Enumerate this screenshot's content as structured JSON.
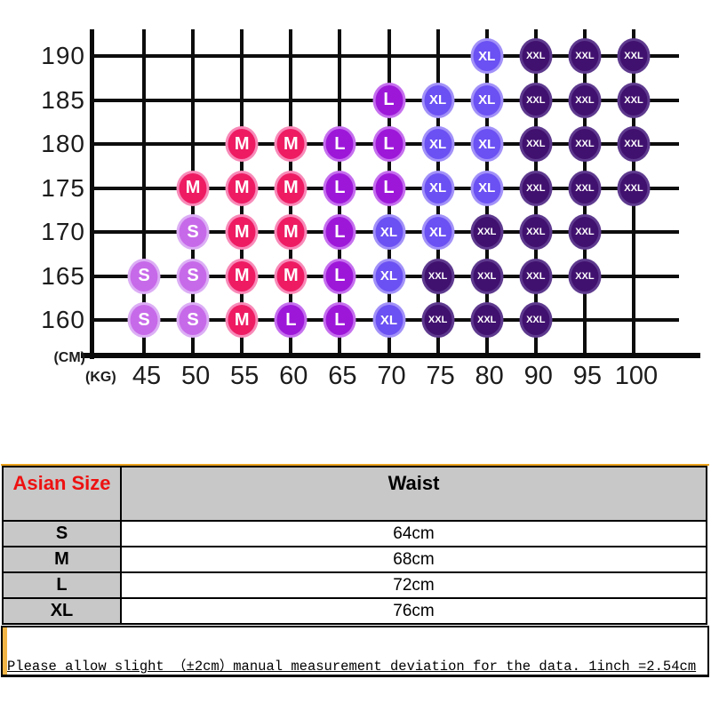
{
  "chart_data": {
    "type": "scatter",
    "title": "",
    "xlabel": "(KG)",
    "ylabel": "(CM)",
    "x_ticks": [
      45,
      50,
      55,
      60,
      65,
      70,
      75,
      80,
      90,
      95,
      100
    ],
    "y_ticks": [
      190,
      185,
      180,
      175,
      170,
      165,
      160
    ],
    "grid": true,
    "legend_sizes": [
      "S",
      "M",
      "L",
      "XL",
      "XXL"
    ],
    "rows": [
      {
        "cm": 190,
        "items": [
          {
            "kg": 80,
            "size": "XL"
          },
          {
            "kg": 90,
            "size": "XXL"
          },
          {
            "kg": 95,
            "size": "XXL"
          },
          {
            "kg": 100,
            "size": "XXL"
          }
        ]
      },
      {
        "cm": 185,
        "items": [
          {
            "kg": 70,
            "size": "L"
          },
          {
            "kg": 75,
            "size": "XL"
          },
          {
            "kg": 80,
            "size": "XL"
          },
          {
            "kg": 90,
            "size": "XXL"
          },
          {
            "kg": 95,
            "size": "XXL"
          },
          {
            "kg": 100,
            "size": "XXL"
          }
        ]
      },
      {
        "cm": 180,
        "items": [
          {
            "kg": 55,
            "size": "M"
          },
          {
            "kg": 60,
            "size": "M"
          },
          {
            "kg": 65,
            "size": "L"
          },
          {
            "kg": 70,
            "size": "L"
          },
          {
            "kg": 75,
            "size": "XL"
          },
          {
            "kg": 80,
            "size": "XL"
          },
          {
            "kg": 90,
            "size": "XXL"
          },
          {
            "kg": 95,
            "size": "XXL"
          },
          {
            "kg": 100,
            "size": "XXL"
          }
        ]
      },
      {
        "cm": 175,
        "items": [
          {
            "kg": 50,
            "size": "M"
          },
          {
            "kg": 55,
            "size": "M"
          },
          {
            "kg": 60,
            "size": "M"
          },
          {
            "kg": 65,
            "size": "L"
          },
          {
            "kg": 70,
            "size": "L"
          },
          {
            "kg": 75,
            "size": "XL"
          },
          {
            "kg": 80,
            "size": "XL"
          },
          {
            "kg": 90,
            "size": "XXL"
          },
          {
            "kg": 95,
            "size": "XXL"
          },
          {
            "kg": 100,
            "size": "XXL"
          }
        ]
      },
      {
        "cm": 170,
        "items": [
          {
            "kg": 50,
            "size": "S"
          },
          {
            "kg": 55,
            "size": "M"
          },
          {
            "kg": 60,
            "size": "M"
          },
          {
            "kg": 65,
            "size": "L"
          },
          {
            "kg": 70,
            "size": "XL"
          },
          {
            "kg": 75,
            "size": "XL"
          },
          {
            "kg": 80,
            "size": "XXL"
          },
          {
            "kg": 90,
            "size": "XXL"
          },
          {
            "kg": 95,
            "size": "XXL"
          }
        ]
      },
      {
        "cm": 165,
        "items": [
          {
            "kg": 45,
            "size": "S"
          },
          {
            "kg": 50,
            "size": "S"
          },
          {
            "kg": 55,
            "size": "M"
          },
          {
            "kg": 60,
            "size": "M"
          },
          {
            "kg": 65,
            "size": "L"
          },
          {
            "kg": 70,
            "size": "XL"
          },
          {
            "kg": 75,
            "size": "XXL"
          },
          {
            "kg": 80,
            "size": "XXL"
          },
          {
            "kg": 90,
            "size": "XXL"
          },
          {
            "kg": 95,
            "size": "XXL"
          }
        ]
      },
      {
        "cm": 160,
        "items": [
          {
            "kg": 45,
            "size": "S"
          },
          {
            "kg": 50,
            "size": "S"
          },
          {
            "kg": 55,
            "size": "M"
          },
          {
            "kg": 60,
            "size": "L"
          },
          {
            "kg": 65,
            "size": "L"
          },
          {
            "kg": 70,
            "size": "XL"
          },
          {
            "kg": 75,
            "size": "XXL"
          },
          {
            "kg": 80,
            "size": "XXL"
          },
          {
            "kg": 90,
            "size": "XXL"
          }
        ]
      }
    ],
    "size_colors": {
      "S": {
        "fill": "#c76ae9",
        "rim": "#dcaef5"
      },
      "M": {
        "fill": "#ee1b63",
        "rim": "#f78ab8"
      },
      "L": {
        "fill": "#9d17d9",
        "rim": "#c56fee"
      },
      "XL": {
        "fill": "#6b51f3",
        "rim": "#a291f8"
      },
      "XXL": {
        "fill": "#41116f",
        "rim": "#5e3a8e"
      }
    }
  },
  "size_table": {
    "header": {
      "col1": "Asian Size",
      "col2": "Waist"
    },
    "rows": [
      {
        "size": "S",
        "waist": "64cm"
      },
      {
        "size": "M",
        "waist": "68cm"
      },
      {
        "size": "L",
        "waist": "72cm"
      },
      {
        "size": "XL",
        "waist": "76cm"
      }
    ],
    "header_text_color": "#ee1111",
    "header_bg": "#c8c8c8",
    "accent_color": "#eaa21e"
  },
  "note": {
    "text": "Please allow slight （±2cm）manual measurement deviation for the data. 1inch =2.54cm",
    "strip_color": "#f2b545"
  }
}
